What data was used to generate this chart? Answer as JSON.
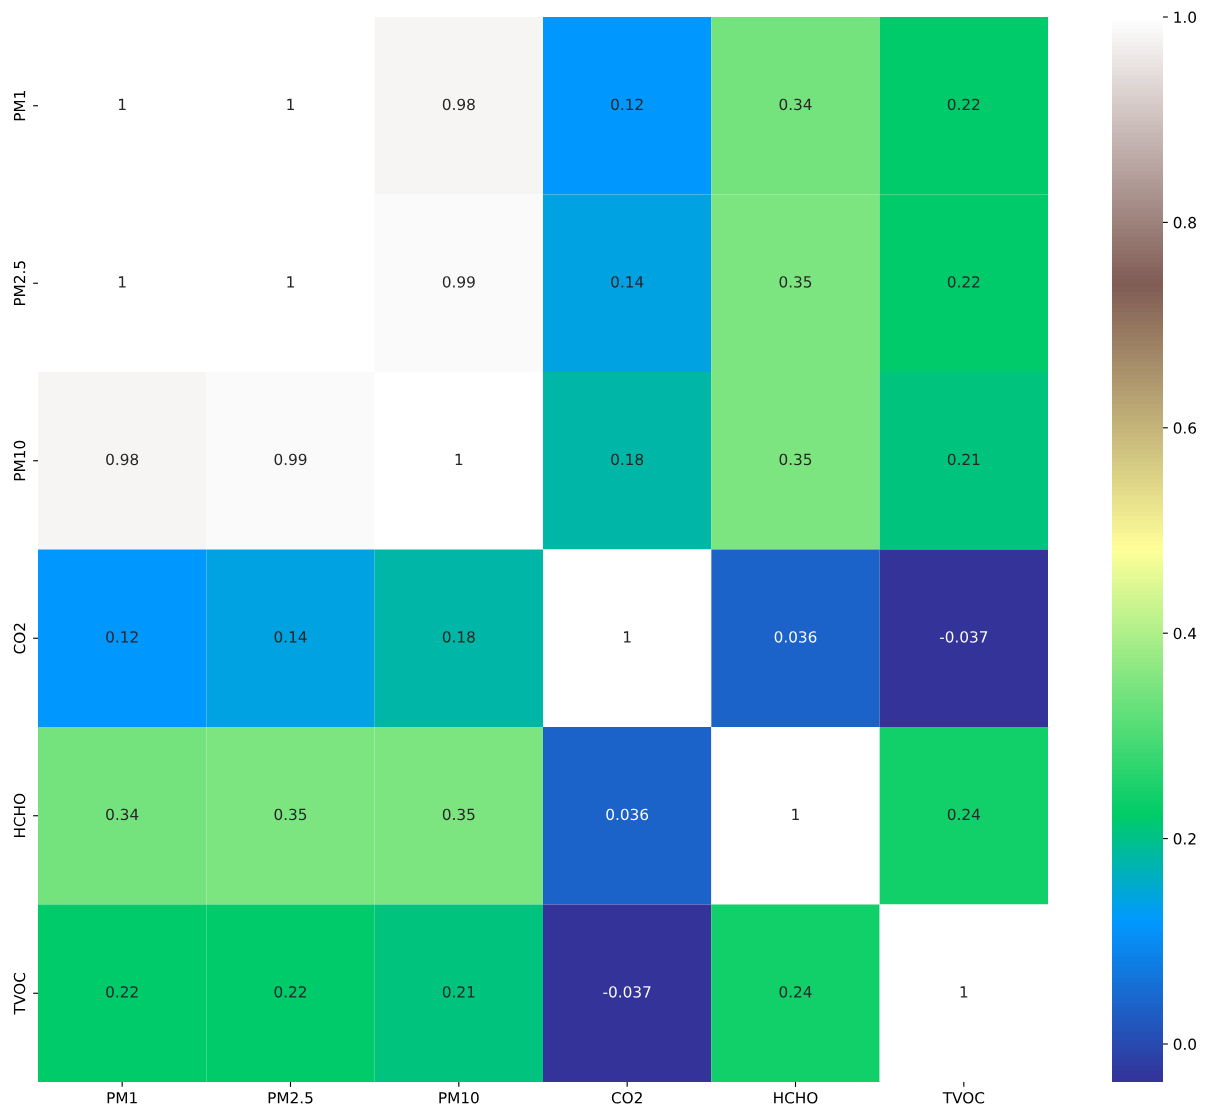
{
  "chart_data": {
    "type": "heatmap",
    "categories": [
      "PM1",
      "PM2.5",
      "PM10",
      "CO2",
      "HCHO",
      "TVOC"
    ],
    "y_categories": [
      "PM1",
      "PM2.5",
      "PM10",
      "CO2",
      "HCHO",
      "TVOC"
    ],
    "cells": [
      [
        1,
        1,
        0.98,
        0.12,
        0.34,
        0.22
      ],
      [
        1,
        1,
        0.99,
        0.14,
        0.35,
        0.22
      ],
      [
        0.98,
        0.99,
        1,
        0.18,
        0.35,
        0.21
      ],
      [
        0.12,
        0.14,
        0.18,
        1,
        0.036,
        -0.037
      ],
      [
        0.34,
        0.35,
        0.35,
        0.036,
        1,
        0.24
      ],
      [
        0.22,
        0.22,
        0.21,
        -0.037,
        0.24,
        1
      ]
    ],
    "data_labels": true,
    "clim": [
      -0.037,
      1
    ],
    "cticks": [
      {
        "value": 0,
        "label": "0.0"
      },
      {
        "value": 0.2,
        "label": "0.2"
      },
      {
        "value": 0.4,
        "label": "0.4"
      },
      {
        "value": 0.6,
        "label": "0.6"
      },
      {
        "value": 0.8,
        "label": "0.8"
      },
      {
        "value": 1,
        "label": "1.0"
      }
    ]
  }
}
